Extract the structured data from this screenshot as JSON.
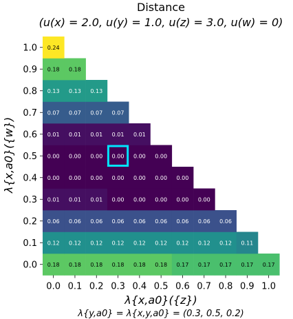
{
  "chart_data": {
    "type": "heatmap",
    "title": "Distance",
    "subtitle": "(u(x) = 2.0, u(y) = 1.0, u(z) = 3.0, u(w) = 0)",
    "xlabel": "λ{x,a0}({z})",
    "ylabel": "λ{x,a0}({w})",
    "footnote": "λ{y,a0} = λ{x,y,a0} = (0.3, 0.5, 0.2)",
    "x_ticks": [
      "0.0",
      "0.1",
      "0.2",
      "0.3",
      "0.4",
      "0.5",
      "0.6",
      "0.7",
      "0.8",
      "0.9",
      "1.0"
    ],
    "y_ticks": [
      "0.0",
      "0.1",
      "0.2",
      "0.3",
      "0.4",
      "0.5",
      "0.6",
      "0.7",
      "0.8",
      "0.9",
      "1.0"
    ],
    "highlight": {
      "x": "0.3",
      "y": "0.5"
    },
    "colormap": "viridis",
    "rows": [
      {
        "y": "0.0",
        "values": [
          0.18,
          0.18,
          0.18,
          0.18,
          0.18,
          0.18,
          0.17,
          0.17,
          0.17,
          0.17,
          0.17
        ]
      },
      {
        "y": "0.1",
        "values": [
          0.12,
          0.12,
          0.12,
          0.12,
          0.12,
          0.12,
          0.12,
          0.12,
          0.12,
          0.11
        ]
      },
      {
        "y": "0.2",
        "values": [
          0.06,
          0.06,
          0.06,
          0.06,
          0.06,
          0.06,
          0.06,
          0.06,
          0.06
        ]
      },
      {
        "y": "0.3",
        "values": [
          0.01,
          0.01,
          0.01,
          0.0,
          0.0,
          0.0,
          0.0,
          0.0
        ]
      },
      {
        "y": "0.4",
        "values": [
          0.0,
          0.0,
          0.0,
          0.0,
          0.0,
          0.0,
          0.0
        ]
      },
      {
        "y": "0.5",
        "values": [
          0.0,
          0.0,
          0.0,
          0.0,
          0.0,
          0.0
        ]
      },
      {
        "y": "0.6",
        "values": [
          0.01,
          0.01,
          0.01,
          0.01,
          0.01
        ]
      },
      {
        "y": "0.7",
        "values": [
          0.07,
          0.07,
          0.07,
          0.07
        ]
      },
      {
        "y": "0.8",
        "values": [
          0.13,
          0.13,
          0.13
        ]
      },
      {
        "y": "0.9",
        "values": [
          0.18,
          0.18
        ]
      },
      {
        "y": "1.0",
        "values": [
          0.24
        ]
      }
    ],
    "color_min": 0.0,
    "color_max": 0.24,
    "highlight_color": "#00e5ff"
  }
}
